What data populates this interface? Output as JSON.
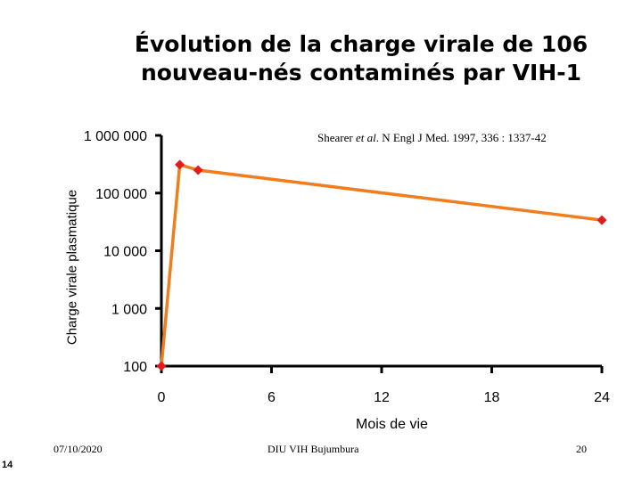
{
  "slide": {
    "title_line1": "Évolution de la charge virale de 106",
    "title_line2": "nouveau-nés contaminés par VIH-1",
    "source_author": "Shearer",
    "source_etal": "et al",
    "source_rest": ". N Engl J Med. 1997, 336 : 1337-42",
    "footer_date": "07/10/2020",
    "footer_center": "DIU VIH Bujumbura",
    "footer_page": "20",
    "slide_number": "14"
  },
  "chart_data": {
    "type": "line",
    "title": "Évolution de la charge virale de 106 nouveau-nés contaminés par VIH-1",
    "xlabel": "Mois de vie",
    "ylabel": "Charge virale plasmatique",
    "y_scale": "log",
    "xlim": [
      0,
      24
    ],
    "ylim": [
      100,
      1000000
    ],
    "x_ticks": [
      0,
      6,
      12,
      18,
      24
    ],
    "x_tick_labels": [
      "0",
      "6",
      "12",
      "18",
      "24"
    ],
    "y_ticks": [
      100,
      1000,
      10000,
      100000,
      1000000
    ],
    "y_tick_labels": [
      "100",
      "1 000",
      "10 000",
      "100 000",
      "1 000 000"
    ],
    "series": [
      {
        "name": "Charge virale",
        "color": "#f07d1e",
        "marker_color": "#e51b1b",
        "x": [
          0,
          1,
          2,
          24
        ],
        "y": [
          100,
          310000,
          250000,
          34000
        ]
      }
    ]
  }
}
